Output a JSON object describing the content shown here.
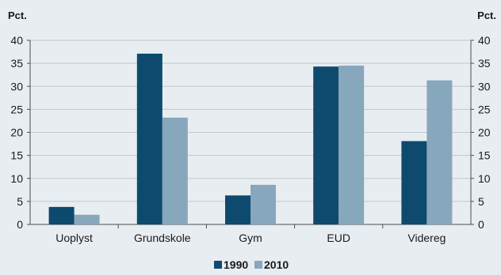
{
  "chart_data": {
    "type": "bar",
    "y_unit_left": "Pct.",
    "y_unit_right": "Pct.",
    "categories": [
      "Uoplyst",
      "Grundskole",
      "Gym",
      "EUD",
      "Videreg"
    ],
    "series": [
      {
        "name": "1990",
        "color": "#0d4a6e",
        "values": [
          3.8,
          37.1,
          6.3,
          34.3,
          18.1
        ]
      },
      {
        "name": "2010",
        "color": "#87a7bd",
        "values": [
          2.1,
          23.2,
          8.6,
          34.5,
          31.3
        ]
      }
    ],
    "ylim": [
      0,
      40
    ],
    "yticks": [
      "0",
      "5",
      "10",
      "15",
      "20",
      "25",
      "30",
      "35",
      "40"
    ],
    "grid": true,
    "legend": "bottom-center"
  }
}
